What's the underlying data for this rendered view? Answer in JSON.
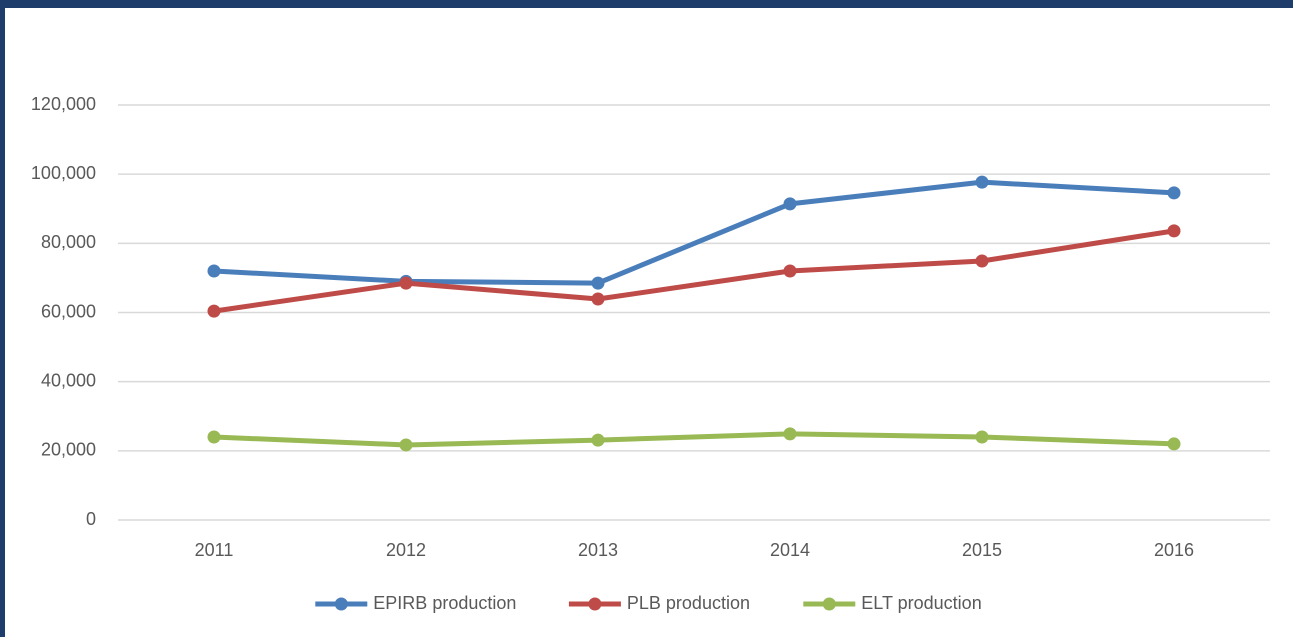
{
  "chart_data": {
    "type": "line",
    "categories": [
      "2011",
      "2012",
      "2013",
      "2014",
      "2015",
      "2016"
    ],
    "series": [
      {
        "name": "EPIRB production",
        "color": "#4a7ebb",
        "values": [
          72000,
          69000,
          68500,
          91400,
          97700,
          94600
        ]
      },
      {
        "name": "PLB production",
        "color": "#be4b48",
        "values": [
          60400,
          68500,
          63900,
          72000,
          74900,
          83600
        ]
      },
      {
        "name": "ELT production",
        "color": "#98b954",
        "values": [
          24000,
          21700,
          23100,
          24900,
          24000,
          22000
        ]
      }
    ],
    "ylim": [
      0,
      120000
    ],
    "yticks": [
      0,
      {
        "value": 20000,
        "label": "20,000"
      },
      {
        "value": 40000,
        "label": "40,000"
      },
      {
        "value": 60000,
        "label": "60,000"
      },
      {
        "value": 80000,
        "label": "80,000"
      },
      {
        "value": 100000,
        "label": "100,000"
      },
      {
        "value": 120000,
        "label": "120,000"
      }
    ],
    "grid": true,
    "legend": "bottom"
  }
}
